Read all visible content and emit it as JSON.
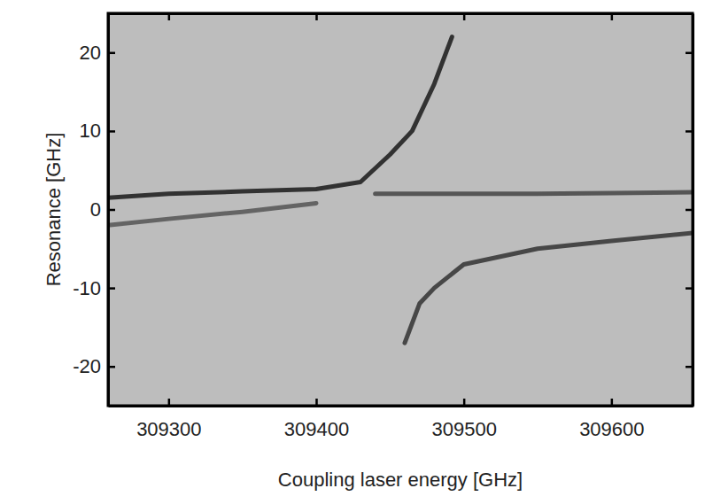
{
  "chart_data": {
    "type": "line",
    "x_label": "Coupling laser energy [GHz]",
    "y_label": "Resonance [GHz]",
    "xlim": [
      309259,
      309655
    ],
    "ylim": [
      -25,
      25
    ],
    "xticks": [
      309300,
      309400,
      309500,
      309600
    ],
    "yticks": [
      -20,
      -10,
      0,
      10,
      20
    ],
    "grid": false,
    "series": [
      {
        "color": "#1a1a1a",
        "x": [
          309259,
          309300,
          309350,
          309400,
          309430,
          309450,
          309465,
          309480,
          309492
        ],
        "values": [
          1.5,
          2,
          2.3,
          2.6,
          3.5,
          7,
          10,
          16,
          22
        ]
      },
      {
        "color": "#555555",
        "x": [
          309259,
          309300,
          309350,
          309400
        ],
        "values": [
          -2,
          -1.2,
          -0.3,
          0.8
        ]
      },
      {
        "color": "#444444",
        "x": [
          309440,
          309500,
          309550,
          309600,
          309655
        ],
        "values": [
          2,
          2,
          2,
          2.1,
          2.2
        ]
      },
      {
        "color": "#333333",
        "x": [
          309460,
          309470,
          309480,
          309500,
          309550,
          309600,
          309655
        ],
        "values": [
          -17,
          -12,
          -10,
          -7,
          -5,
          -4,
          -3
        ]
      }
    ]
  }
}
